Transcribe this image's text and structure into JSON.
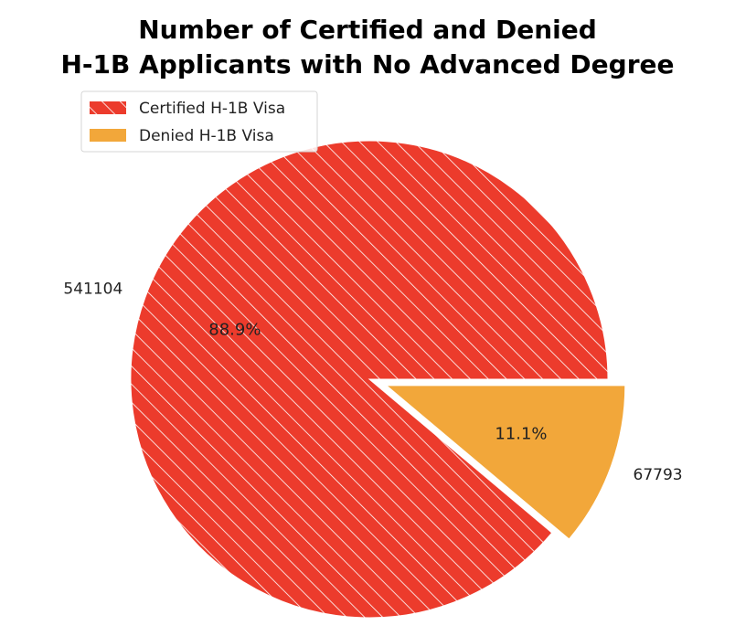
{
  "chart_data": {
    "type": "pie",
    "title_lines": [
      "Number of Certified and Denied",
      "H-1B Applicants with No Advanced Degree"
    ],
    "legend_placement": "upper-left",
    "slices": [
      {
        "name": "Certified H-1B Visa",
        "value": 541104,
        "value_label": "541104",
        "percent_label": "88.9%",
        "color": "#EC3B2C",
        "hatch": true,
        "exploded": false
      },
      {
        "name": "Denied H-1B Visa",
        "value": 67793,
        "value_label": "67793",
        "percent_label": "11.1%",
        "color": "#F2A73A",
        "hatch": false,
        "exploded": true
      }
    ]
  }
}
